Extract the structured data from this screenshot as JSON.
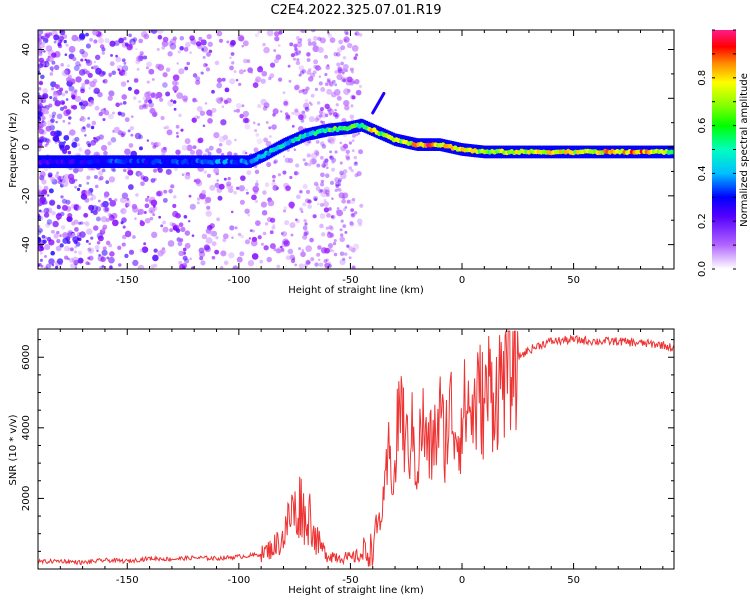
{
  "figure_title": "C2E4.2022.325.07.01.R19",
  "chart_data": [
    {
      "type": "heatmap",
      "title": "C2E4.2022.325.07.01.R19",
      "xlabel": "Height of straight line (km)",
      "ylabel": "Frequency (Hz)",
      "xlim": [
        -190,
        95
      ],
      "ylim": [
        -50,
        48
      ],
      "x_ticks": [
        -150,
        -100,
        -50,
        0,
        50
      ],
      "y_ticks": [
        -40,
        -20,
        0,
        20,
        40
      ],
      "grid": false,
      "colorbar": {
        "label": "Normalized spectral amplitude",
        "range": [
          0,
          1
        ],
        "ticks": [
          0.0,
          0.2,
          0.4,
          0.6,
          0.8
        ],
        "colormap": [
          "#ffffff",
          "#8b00ff",
          "#0000ff",
          "#00bfff",
          "#00ff7f",
          "#7fff00",
          "#ffff00",
          "#ff8c00",
          "#ff0000",
          "#ff1493"
        ]
      },
      "ridge": {
        "x": [
          -190,
          -160,
          -130,
          -110,
          -95,
          -88,
          -80,
          -70,
          -60,
          -50,
          -45,
          -40,
          -35,
          -30,
          -25,
          -20,
          -15,
          -10,
          -5,
          0,
          10,
          20,
          40,
          60,
          80,
          95
        ],
        "y": [
          -6,
          -6,
          -6,
          -6,
          -6,
          -3,
          1,
          5,
          7,
          8,
          9,
          7,
          5,
          3,
          2,
          1,
          1,
          1,
          0,
          -1,
          -2,
          -2,
          -2,
          -2,
          -2,
          -2
        ],
        "amplitude": [
          0.15,
          0.25,
          0.25,
          0.3,
          0.3,
          0.4,
          0.4,
          0.4,
          0.5,
          0.5,
          0.45,
          0.7,
          0.55,
          0.6,
          0.6,
          0.75,
          0.85,
          0.7,
          0.7,
          0.65,
          0.6,
          0.6,
          0.65,
          0.7,
          0.8,
          0.5
        ]
      },
      "spur": {
        "x": [
          -40,
          -35
        ],
        "y": [
          14,
          22
        ]
      }
    },
    {
      "type": "line",
      "xlabel": "Height of straight line (km)",
      "ylabel": "SNR (10 * v/v)",
      "xlim": [
        -190,
        95
      ],
      "ylim": [
        0,
        6800
      ],
      "x_ticks": [
        -150,
        -100,
        -50,
        0,
        50
      ],
      "y_ticks": [
        2000,
        4000,
        6000
      ],
      "grid": false,
      "color": "#ee3333",
      "series": [
        {
          "x": [
            -190,
            -180,
            -170,
            -160,
            -150,
            -140,
            -130,
            -120,
            -110,
            -100,
            -95,
            -90,
            -85,
            -80,
            -78,
            -76,
            -74,
            -72,
            -70,
            -68,
            -66,
            -64,
            -62,
            -60,
            -55,
            -50,
            -45,
            -40,
            -38,
            -35,
            -33,
            -30,
            -28,
            -25,
            -22,
            -20,
            -18,
            -15,
            -12,
            -10,
            -8,
            -5,
            -2,
            0,
            2,
            5,
            8,
            10,
            12,
            15,
            18,
            20,
            25,
            30,
            35,
            40,
            50,
            60,
            70,
            80,
            90,
            95
          ],
          "y": [
            200,
            230,
            180,
            250,
            220,
            300,
            280,
            320,
            300,
            350,
            380,
            420,
            600,
            900,
            1300,
            1700,
            1500,
            2000,
            1200,
            1600,
            900,
            700,
            500,
            400,
            350,
            300,
            400,
            600,
            1200,
            1800,
            3200,
            2600,
            5000,
            3400,
            3800,
            2800,
            4200,
            3300,
            3700,
            4400,
            3600,
            4500,
            3800,
            4200,
            4700,
            4400,
            4900,
            4600,
            5200,
            4900,
            5500,
            5700,
            6000,
            6200,
            6350,
            6450,
            6500,
            6450,
            6450,
            6400,
            6350,
            6250
          ]
        }
      ]
    }
  ]
}
